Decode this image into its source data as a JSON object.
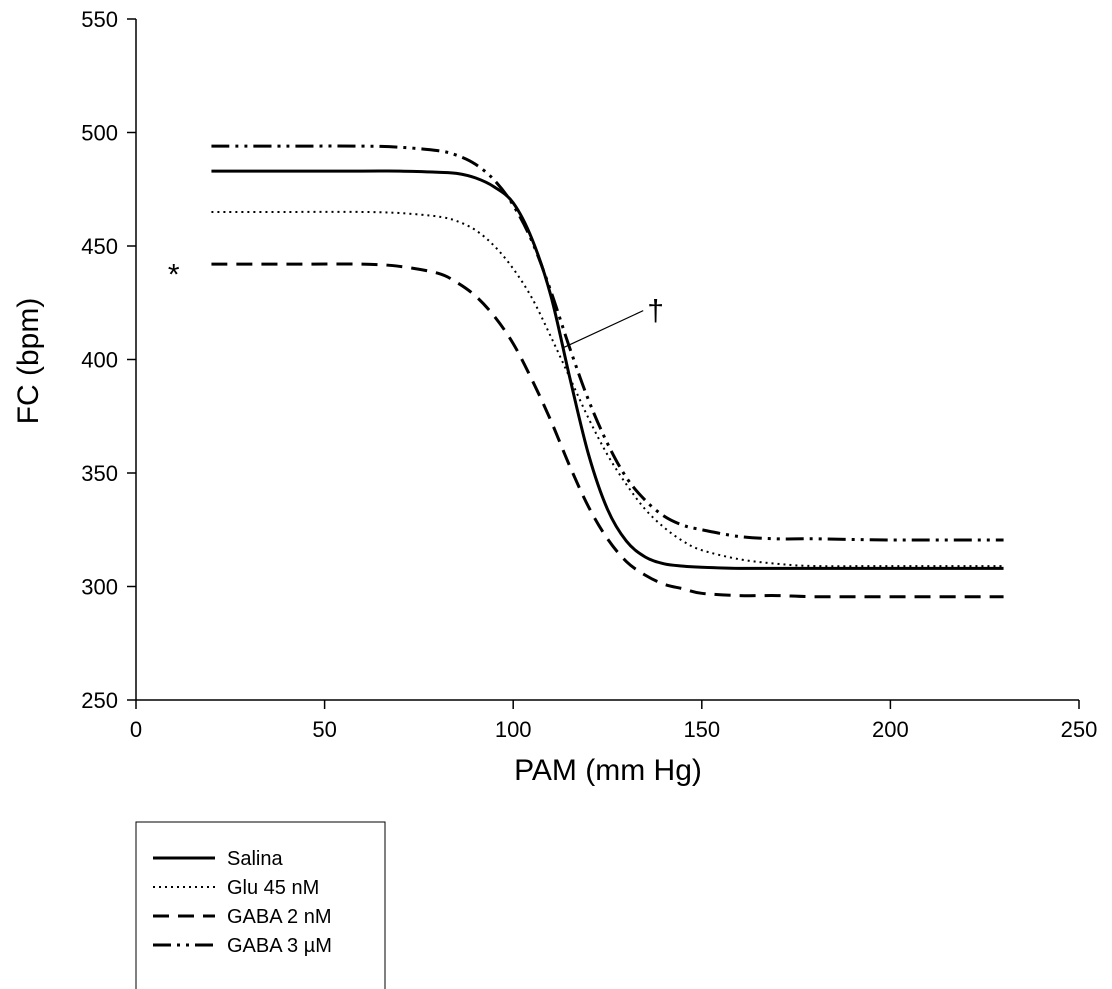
{
  "chart_data": {
    "type": "line",
    "xlabel": "PAM (mm Hg)",
    "ylabel": "FC (bpm)",
    "xlim": [
      0,
      250
    ],
    "ylim": [
      250,
      550
    ],
    "xticks": [
      0,
      50,
      100,
      150,
      200,
      250
    ],
    "yticks": [
      250,
      300,
      350,
      400,
      450,
      500,
      550
    ],
    "grid": false,
    "legend_position": "bottom-left",
    "x": [
      20,
      40,
      60,
      70,
      80,
      85,
      90,
      95,
      100,
      105,
      110,
      115,
      120,
      125,
      130,
      135,
      140,
      145,
      150,
      160,
      170,
      180,
      200,
      230
    ],
    "series": [
      {
        "name": "Salina",
        "style": "solid",
        "values": [
          483,
          483,
          483,
          483,
          482.5,
          482,
          480,
          476,
          469,
          453,
          428,
          392,
          358,
          334,
          320,
          313,
          310,
          309,
          308.5,
          308,
          308,
          308,
          308,
          308
        ]
      },
      {
        "name": "Glu 45 nM",
        "style": "dotted",
        "values": [
          465,
          465,
          465,
          464.5,
          463,
          461,
          457,
          450,
          440,
          427,
          410,
          392,
          374,
          358,
          345,
          334,
          326,
          320,
          316,
          312,
          310,
          309,
          309,
          309
        ]
      },
      {
        "name": "GABA 2 nM",
        "style": "dashed",
        "values": [
          442,
          442,
          442,
          441,
          438,
          434,
          428,
          419,
          407,
          391,
          373,
          353,
          335,
          321,
          311,
          305,
          301,
          299,
          297,
          296,
          296,
          295.5,
          295.5,
          295.5
        ]
      },
      {
        "name": "GABA 3 µM",
        "style": "dash-dot-dot",
        "values": [
          494,
          494,
          494,
          493.5,
          492,
          490,
          486,
          479,
          468,
          452,
          430,
          405,
          382,
          363,
          348,
          338,
          331,
          327,
          325,
          322,
          321,
          321,
          320.5,
          320.5
        ]
      }
    ],
    "annotations": [
      {
        "text": "*",
        "x": 10,
        "y": 440
      },
      {
        "text": "†",
        "x": 135,
        "y": 418,
        "arrow_to": [
          113,
          405
        ]
      }
    ]
  }
}
